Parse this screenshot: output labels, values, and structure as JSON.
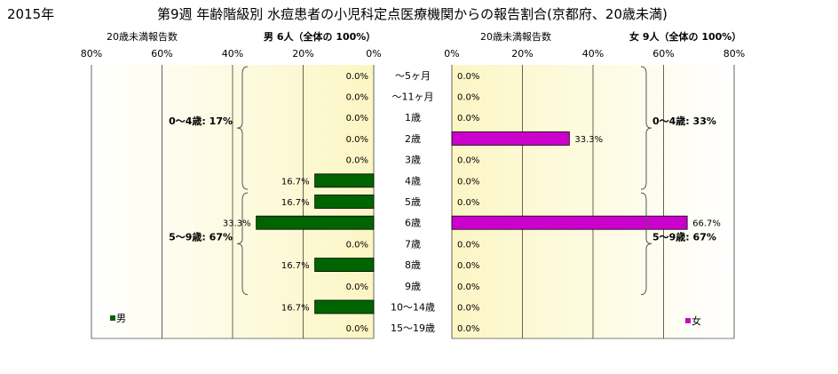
{
  "header": {
    "year": "2015年",
    "title": "第9週 年齢階級別 水痘患者の小児科定点医療機関からの報告割合(京都府、20歳未満)"
  },
  "chart_data": {
    "type": "bar",
    "orientation": "horizontal",
    "categories": [
      "〜5ヶ月",
      "〜11ヶ月",
      "1歳",
      "2歳",
      "3歳",
      "4歳",
      "5歳",
      "6歳",
      "7歳",
      "8歳",
      "9歳",
      "10〜14歳",
      "15〜19歳"
    ],
    "xlim": [
      0,
      80
    ],
    "ticks": [
      0,
      20,
      40,
      60,
      80
    ],
    "tick_suffix": "%",
    "grid": true,
    "legend_position": "bottom-left / bottom-right",
    "panels": [
      {
        "side": "left",
        "axis_label": "20歳未満報告数",
        "panel_title": "男 6人（全体の 100%）",
        "legend": "男",
        "color": "#006400",
        "values": [
          0.0,
          0.0,
          0.0,
          0.0,
          0.0,
          16.7,
          16.7,
          33.3,
          0.0,
          16.7,
          0.0,
          16.7,
          0.0
        ],
        "value_labels": [
          "0.0%",
          "0.0%",
          "0.0%",
          "0.0%",
          "0.0%",
          "16.7%",
          "16.7%",
          "33.3%",
          "0.0%",
          "16.7%",
          "0.0%",
          "16.7%",
          "0.0%"
        ],
        "groups": [
          {
            "label": "0〜4歳: 17%",
            "from": 0,
            "to": 5
          },
          {
            "label": "5〜9歳: 67%",
            "from": 6,
            "to": 10
          }
        ]
      },
      {
        "side": "right",
        "axis_label": "20歳未満報告数",
        "panel_title": "女 9人（全体の 100%）",
        "legend": "女",
        "color": "#cc00cc",
        "values": [
          0.0,
          0.0,
          0.0,
          33.3,
          0.0,
          0.0,
          0.0,
          66.7,
          0.0,
          0.0,
          0.0,
          0.0,
          0.0
        ],
        "value_labels": [
          "0.0%",
          "0.0%",
          "0.0%",
          "33.3%",
          "0.0%",
          "0.0%",
          "0.0%",
          "66.7%",
          "0.0%",
          "0.0%",
          "0.0%",
          "0.0%",
          "0.0%"
        ],
        "groups": [
          {
            "label": "0〜4歳: 33%",
            "from": 0,
            "to": 5
          },
          {
            "label": "5〜9歳: 67%",
            "from": 6,
            "to": 10
          }
        ]
      }
    ]
  }
}
